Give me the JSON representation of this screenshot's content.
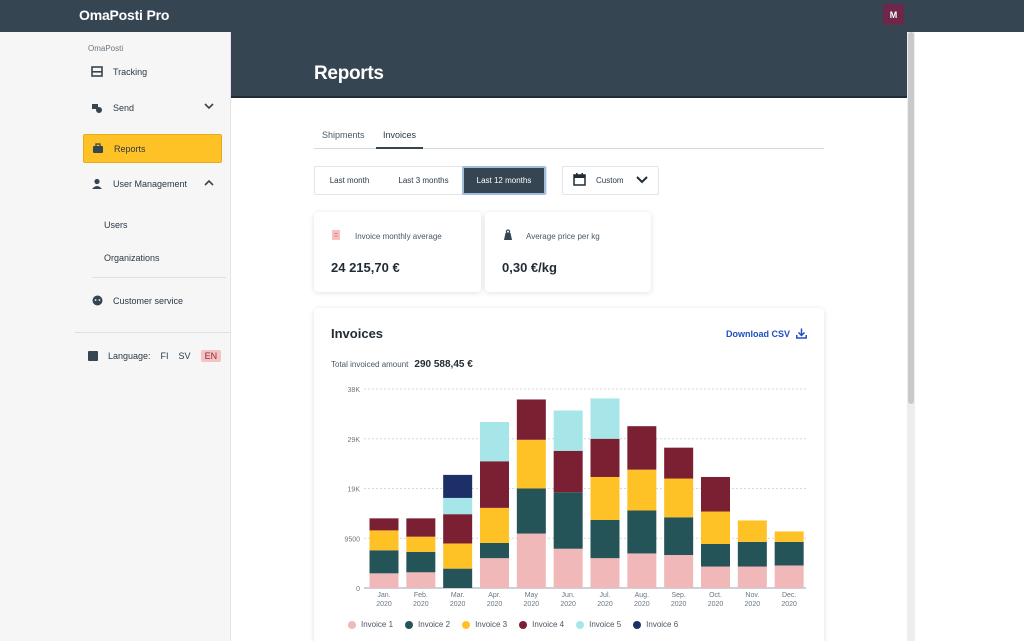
{
  "app": {
    "brand": "OmaPosti Pro",
    "avatar_initial": "M"
  },
  "sidebar": {
    "section": "OmaPosti",
    "items": [
      {
        "label": "Tracking",
        "icon": "tracking-icon"
      },
      {
        "label": "Send",
        "icon": "send-icon"
      },
      {
        "label": "Reports",
        "icon": "reports-icon",
        "active": true
      },
      {
        "label": "User Management",
        "icon": "user-icon"
      }
    ],
    "sub_items": [
      "Users",
      "Organizations"
    ],
    "customer_service": "Customer service",
    "language": {
      "label": "Language:",
      "options": [
        "FI",
        "SV",
        "EN"
      ],
      "selected": "EN"
    }
  },
  "page": {
    "title": "Reports"
  },
  "tabs": [
    "Shipments",
    "Invoices"
  ],
  "active_tab": "Invoices",
  "periods": [
    "Last month",
    "Last 3 months",
    "Last 12 months"
  ],
  "active_period": "Last 12 months",
  "custom_label": "Custom",
  "kpis": [
    {
      "label": "Invoice monthly average",
      "value": "24 215,70 €",
      "icon": "invoice-icon"
    },
    {
      "label": "Average price per kg",
      "value": "0,30 €/kg",
      "icon": "weight-icon"
    }
  ],
  "invoices": {
    "title": "Invoices",
    "download": "Download CSV",
    "total_label": "Total invoiced amount",
    "total_value": "290 588,45 €"
  },
  "colors": {
    "accent": "#ffc226",
    "header": "#364552",
    "series": [
      "#f0b8b8",
      "#245458",
      "#ffc226",
      "#7b2033",
      "#a6e6e8",
      "#1c2f66"
    ]
  },
  "chart_data": {
    "type": "bar",
    "stacked": true,
    "categories": [
      "Jan. 2020",
      "Feb. 2020",
      "Mar. 2020",
      "Apr. 2020",
      "May 2020",
      "Jun. 2020",
      "Jul. 2020",
      "Aug. 2020",
      "Sep. 2020",
      "Oct. 2020",
      "Nov. 2020",
      "Dec. 2020"
    ],
    "category_lines": [
      [
        "Jan.",
        "2020"
      ],
      [
        "Feb.",
        "2020"
      ],
      [
        "Mar.",
        "2020"
      ],
      [
        "Apr.",
        "2020"
      ],
      [
        "May",
        "2020"
      ],
      [
        "Jun.",
        "2020"
      ],
      [
        "Jul.",
        "2020"
      ],
      [
        "Aug.",
        "2020"
      ],
      [
        "Sep.",
        "2020"
      ],
      [
        "Oct.",
        "2020"
      ],
      [
        "Nov.",
        "2020"
      ],
      [
        "Dec.",
        "2020"
      ]
    ],
    "series": [
      {
        "name": "Invoice 1",
        "values": [
          2800,
          3000,
          0,
          5700,
          10400,
          7500,
          5700,
          6600,
          6300,
          4100,
          4100,
          4300
        ]
      },
      {
        "name": "Invoice 2",
        "values": [
          4400,
          3900,
          3700,
          2900,
          8600,
          10800,
          7300,
          8200,
          7200,
          4300,
          4700,
          4500
        ]
      },
      {
        "name": "Invoice 3",
        "values": [
          3800,
          2900,
          4800,
          6700,
          9300,
          0,
          8200,
          7800,
          7400,
          6200,
          4100,
          2000
        ]
      },
      {
        "name": "Invoice 4",
        "values": [
          2300,
          3500,
          5600,
          8900,
          7700,
          7900,
          7300,
          8300,
          5900,
          6600,
          0,
          0
        ]
      },
      {
        "name": "Invoice 5",
        "values": [
          0,
          0,
          3100,
          7500,
          0,
          7700,
          7700,
          0,
          0,
          0,
          0,
          0
        ]
      },
      {
        "name": "Invoice 6",
        "values": [
          0,
          0,
          4400,
          0,
          0,
          0,
          0,
          0,
          0,
          0,
          0,
          0
        ]
      }
    ],
    "y_ticks": [
      0,
      9500,
      19000,
      28500,
      38000
    ],
    "y_tick_labels": [
      "0",
      "9500",
      "19K",
      "29K",
      "38K"
    ],
    "ylim": [
      0,
      38000
    ],
    "grid": true,
    "legend": "bottom"
  }
}
